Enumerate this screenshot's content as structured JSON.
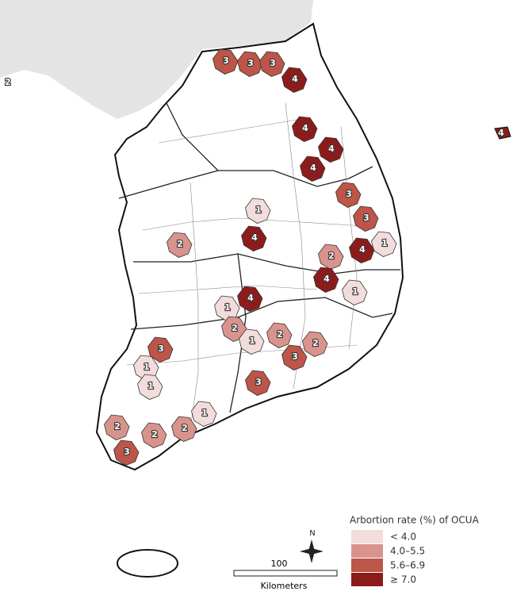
{
  "map": {
    "regions": [
      "3",
      "3",
      "3",
      "4",
      "4",
      "4",
      "4",
      "4",
      "2",
      "3",
      "3",
      "1",
      "4",
      "2",
      "4",
      "1",
      "1",
      "4",
      "2",
      "4",
      "1",
      "2",
      "1",
      "2",
      "2",
      "3",
      "3",
      "3",
      "1",
      "1",
      "1",
      "2",
      "2",
      "2",
      "3"
    ],
    "legend": {
      "title": "Arbortion rate (%) of OCUA",
      "items": [
        {
          "label": "< 4.0",
          "color": "#f3dcdc"
        },
        {
          "label": "4.0–5.5",
          "color": "#d9938d"
        },
        {
          "label": "5.6–6.9",
          "color": "#bd5548"
        },
        {
          "label": "≥ 7.0",
          "color": "#8c1c1c"
        }
      ]
    },
    "compass": "N",
    "scale": {
      "distance": "100",
      "unit": "Kilometers"
    }
  }
}
